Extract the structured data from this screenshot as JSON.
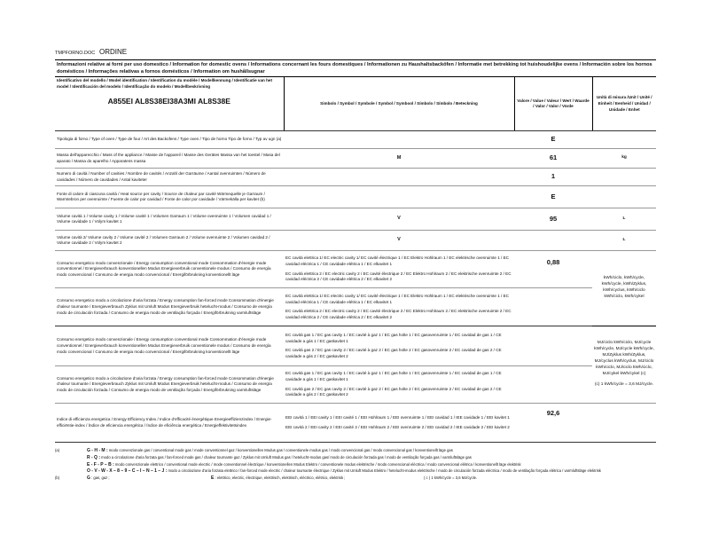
{
  "header": {
    "file": "TMPFORNO.DOC",
    "order": "ORDINE"
  },
  "title": "Informazioni relative ai forni per uso domestico / Information for domestic ovens / Informations concernant les fours domestiques / Informationen zu Haushaltsbacköfen / Informatie met betrekking tot huishoudelijke ovens / Información sobre los hornos domésticos / Informações relativas a fornos domésticos / Information om hushållsugnar",
  "columns": {
    "model_label": "Identificativo del modello / Model identification / Identification du modèle / Modellkennung / Identificatie van het model / Identificación del modelo / Identificação do modelo / Modellbeskrivning",
    "model": "A855EI AL8S38EI38A3MI AL8S38E",
    "symbol": "Simbolo / Symbol / Symbole / Symbol / Symbool / Símbolo / Símbolo / Beteckning",
    "value": "Valore / Value / Valeur / Wert / Waarde / Valor / Valor / Värde",
    "unit": "Unità di misura /Unit / Unité / Einheit / Eenheid / Unidad / Unidade / Enhet"
  },
  "rows": [
    {
      "label": "Tipologia di forno / Type of oven / Type de four / Art des Backofens / Type oven / Tipo de horno Tipo de forno / Typ av ugn (a)",
      "symbol": "",
      "value": "E",
      "unit": ""
    },
    {
      "label": "Massa dell'apparecchio / Mass of the appliance / Masse de l'appareil / Masse des Gerätes Massa van het toestel / Masa del aparato / Massa do aparelho / Apparatens massa",
      "symbol": "M",
      "value": "61",
      "unit": "kg"
    },
    {
      "label": "Numero di cavità / Number of cavities / Nombre de cavités / Anzahl der Garräume / Aantal ovenruimten / Número de cavidades / Número de cavidades / Antal kaviteter",
      "symbol": "",
      "value": "1",
      "unit": ""
    },
    {
      "label": "Fonte di calore di ciascuna cavità / Heat source per cavity / Source de chaleur par cavité Wärmequelle je Garraum / Warmtebron per ovenruimte / Fuente de calor por cavidad / Fonte de calor por cavidade / Värmekälla per kavitet (b)",
      "symbol": "",
      "value": "E",
      "unit": ""
    },
    {
      "label": "Volume cavità 1 / Volume cavity 1 / Volume cavité 1 / Volumen Garraum 1 / Volume ovenruimte 1 / Volumen cavidad 1 / Volume cavidade 1 / Volym kavitet 1",
      "symbol": "V",
      "value": "95",
      "unit": "L"
    },
    {
      "label": "Volume cavità 2/ Volume cavity 2 / Volume cavité 2 / Volumen Garraum 2 / Volume ovenruimte 2 / Volumen cavidad 2 / Volume cavidade 2 / Volym kavitet 2",
      "symbol": "V",
      "value": "",
      "unit": "L"
    }
  ],
  "energy": {
    "conv_label": "Consumo energetico modo convenzionale / Energy consumption conventional mode Consommation d'énergie mode conventionnel / Energieverbrauch konventionellen Modus Energieverbruik conventionele modus / Consumo de energía modo convencional / Consumo de energia modo convencional / Energiförbrukning konventionellt läge",
    "fan_label": "Consumo energetico modo a circolazione d'aria forzata / Energy consumption fan-forced mode Consommation d'énergie chaleur tournante / Energieverbrauch Zyklus mit Umluft Modus Energieverbruik hetelucht-modus / Consumo de energía modo de circulación forzada / Consumo de energia modo de ventilação forçada / Energiförbrukning varmluftsläge",
    "el1": "EC cavità elettrica 1/ EC electric cavity 1/ EC cavité électrique 1 / EC Elektro Hohlraum 1 / EC elektrische ovenruimte 1 / EC cavidad eléctrica 1 / CE cavidade elétrica 1 / EC elkavitet 1",
    "el2": "EC cavità elettrica 2 / EC electric cavity 2 / EC cavité électrique 2 / EC Elektro Hohlraum 2 / EC elektrische ovenruimte 2 / EC cavidad eléctrica 2 / CE cavidade elétrica 2 / EC elkavitet 2",
    "el_value": "0,88",
    "el_unit": "kWh/ciclo, kWh/cycle, kWh/cycle, kWh/Zyklus, kWh/cyclus, kWh/ciclo kWh/ciclo, kWh/cykel",
    "gas1": "EC cavità gas 1 / EC gas cavity 1 / EC cavité à gaz 1 / EC gas holte 1 / EC gasovenruimte 1 / EC cavidad de gas 1 / CE cavidade a gás 1 / EC gaskavitet 1",
    "gas2": "EC cavità gas 2 / EC gas cavity 2 / EC cavité à gaz 2 / EC gas holte 2 / EC gasovenruimte 2 / EC cavidad de gas 2 / CE cavidade a gás 2 / EC gaskavitet 2",
    "gas_unit": "MJ/ciclo kWh/ciclo, MJ/cycle kWh/cycle, MJ/cycle kWh/cycle, MJ/Zyklus kWh/Zyklus, MJ/cyclus kWh/cyclus, MJ/ciclo kWh/ciclo, MJ/ciclo kWh/ciclo, MJ/cykel kWh/cykel (c)",
    "gas_note": "(c) 1 kWh/cycle = 3,6 MJ/cycle."
  },
  "eei": {
    "label": "Indice di efficienza energetica / Energy Efficiency Index / Indice d'efficacité énergétique Energieeffizienzindex / Energie-efficiëntie-index / Índice de eficiencia energética / Índice de eficiência energética / Energieffektivitetsindex",
    "c1": "EEI cavità 1 / EEI cavity 1 / EEI cavité 1 / EEI Hohlraum 1 / EEI ovenruimte 1 / EEI cavidad 1 / IEE cavidade 1 / EEI kavitet 1",
    "c2": "EEI cavità 2 / EEI cavity 2 / EEI cavité 2 / EEI Hohlraum 2 / EEI ovenruimte 2 / EEI cavidad 2 / IEE cavidade 2 / EEI kavitet 2",
    "value": "92,6"
  },
  "footnotes": {
    "a_label": "(a)",
    "b_label": "(b)",
    "a1_key": "G - H - M :",
    "a1": "modo convenzionale gas / conventional mode gas / mode conventionnel gaz / konventionellen Modus gas / conventionele modus gas / modo convencional gas / modo convencional gas / konventionellt läge gas",
    "a2_key": "R - Q :",
    "a2": "modo a circolazione d'aria forzata gas / fan-forced mode gas / chaleur tournante gaz / Zyklus mit Umluft Modus gas / hetelucht-modus gas/ modo de circulación forzada gas / modo de ventilação forçada gas / varmluftsläge gas",
    "a3_key": "E - F - P – B :",
    "a3": "modo convenzionale elettrico / conventional mode electric / mode conventionnel électrique / konventionellen Modus Elektro / conventionele modus elektrische / modo convencional eléctrica / modo convencional elétrica / konventionellt läge elektrisk",
    "a4_key": "O - V - W - X – 8 – 9 – C – I – N – 1 – J :",
    "a4": "modo a circolazione d'aria forzata elettrico / fan-forced mode electric / chaleur tournante électrique / Zyklus mit Umluft Modus Elektro / hetelucht-modus elektrische / modo de circulación forzada eléctrica / modo de ventilação forçada elétrica / varmluftsläge elektrisk",
    "b_g_key": "G",
    "b_g": ": gas, gaz ;",
    "b_e_key": "E",
    "b_e": ": elettrico, electric, électrique, elektrisch, elektrisch, eléctrico, elétrico, elektrisk ;",
    "c": "( c ) 1 kWh/cycle = 3,6 MJ/cycle."
  }
}
